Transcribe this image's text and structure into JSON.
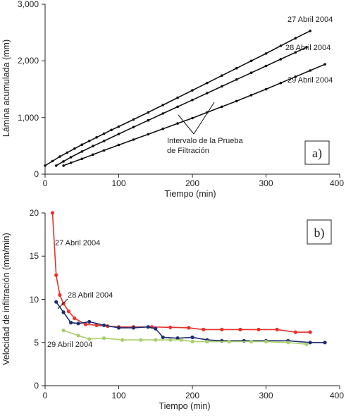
{
  "colors": {
    "axis": "#222222",
    "black": "#111111",
    "red": "#e8312a",
    "navy": "#1d2f6f",
    "green": "#a7cf6a"
  },
  "chart_data": [
    {
      "type": "line",
      "panel_label": "a)",
      "xlabel": "Tiempo  (min)",
      "ylabel": "Lámina acumulada  (mm)",
      "xlim": [
        0,
        400
      ],
      "ylim": [
        0,
        3000
      ],
      "xticks": [
        "0",
        "100",
        "200",
        "300",
        "400"
      ],
      "yticks": [
        "0",
        "1,000",
        "2,000",
        "3,000"
      ],
      "grid": false,
      "annotation": [
        "Intervalo de la Prueba",
        "de Filtración"
      ],
      "series": [
        {
          "name": "27 Abril 2004",
          "color": "#111111",
          "x": [
            0,
            10,
            20,
            30,
            40,
            50,
            60,
            70,
            80,
            90,
            100,
            120,
            140,
            160,
            180,
            200,
            220,
            240,
            260,
            280,
            300,
            320,
            340,
            360
          ],
          "y": [
            150,
            230,
            310,
            380,
            450,
            520,
            585,
            650,
            715,
            780,
            840,
            965,
            1090,
            1220,
            1350,
            1480,
            1610,
            1740,
            1870,
            2000,
            2130,
            2265,
            2400,
            2530
          ]
        },
        {
          "name": "28 Abril 2004",
          "color": "#111111",
          "x": [
            15,
            25,
            35,
            50,
            65,
            80,
            100,
            120,
            140,
            160,
            180,
            200,
            220,
            240,
            260,
            280,
            300,
            320,
            340,
            355
          ],
          "y": [
            150,
            225,
            300,
            400,
            495,
            585,
            710,
            830,
            950,
            1070,
            1190,
            1310,
            1430,
            1550,
            1670,
            1790,
            1910,
            2030,
            2150,
            2240
          ]
        },
        {
          "name": "29 Abril 2004",
          "color": "#111111",
          "x": [
            25,
            35,
            50,
            65,
            80,
            100,
            120,
            140,
            160,
            180,
            200,
            220,
            240,
            260,
            280,
            300,
            320,
            340,
            360,
            380
          ],
          "y": [
            150,
            200,
            270,
            345,
            420,
            515,
            610,
            705,
            800,
            895,
            990,
            1090,
            1190,
            1290,
            1395,
            1500,
            1610,
            1720,
            1830,
            1940
          ]
        }
      ]
    },
    {
      "type": "line",
      "panel_label": "b)",
      "xlabel": "Tiempo (min)",
      "ylabel": "Velocidad de infiltración (mm/min)",
      "xlim": [
        0,
        400
      ],
      "ylim": [
        0,
        20
      ],
      "xticks": [
        "0",
        "100",
        "200",
        "300",
        "400"
      ],
      "yticks": [
        "0",
        "5",
        "10",
        "15",
        "20"
      ],
      "grid": false,
      "series": [
        {
          "name": "27 Abril 2004",
          "color": "#e8312a",
          "x": [
            10,
            15,
            20,
            25,
            32,
            40,
            55,
            70,
            85,
            100,
            120,
            145,
            170,
            195,
            215,
            240,
            265,
            290,
            315,
            340,
            360
          ],
          "y": [
            20,
            12.8,
            10.5,
            9.5,
            8.6,
            7.8,
            7.1,
            7.0,
            6.9,
            6.8,
            6.8,
            6.8,
            6.75,
            6.7,
            6.5,
            6.5,
            6.5,
            6.5,
            6.5,
            6.2,
            6.2
          ]
        },
        {
          "name": "28 Abril 2004",
          "color": "#1d2f6f",
          "x": [
            15,
            25,
            35,
            45,
            60,
            80,
            100,
            120,
            140,
            150,
            160,
            180,
            200,
            220,
            240,
            270,
            300,
            330,
            360,
            380
          ],
          "y": [
            9.7,
            8.5,
            7.3,
            7.2,
            7.4,
            7.0,
            6.7,
            6.7,
            6.8,
            6.6,
            5.6,
            5.5,
            5.6,
            5.3,
            5.2,
            5.2,
            5.2,
            5.2,
            5.0,
            5.0
          ]
        },
        {
          "name": "29 Abril 2004",
          "color": "#a7cf6a",
          "x": [
            25,
            45,
            60,
            80,
            105,
            130,
            150,
            170,
            185,
            200,
            220,
            250,
            280,
            300,
            330,
            355
          ],
          "y": [
            6.4,
            5.8,
            5.4,
            5.5,
            5.3,
            5.3,
            5.3,
            5.3,
            5.3,
            5.1,
            5.1,
            5.1,
            5.1,
            5.1,
            5.0,
            4.8
          ]
        }
      ]
    }
  ]
}
